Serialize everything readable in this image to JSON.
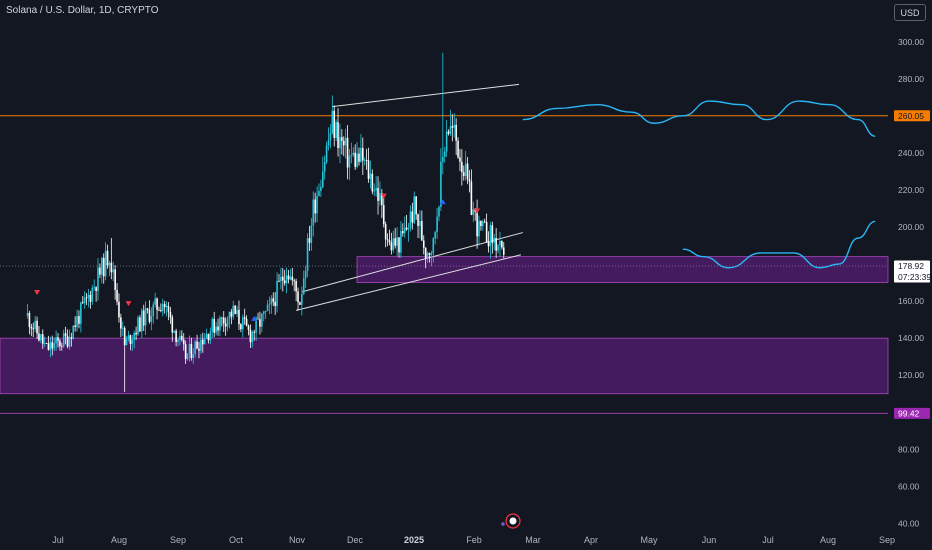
{
  "header": {
    "symbol_title": "Solana / U.S. Dollar, 1D, CRYPTO",
    "currency_button": "USD"
  },
  "colors": {
    "background": "#131722",
    "bull": "#26c6da",
    "bear": "#ffffff",
    "resistance": "#f57c00",
    "zone": "#7b1fa2",
    "projection": "#29b6f6",
    "channel": "#e0e0e0"
  },
  "chart_data": {
    "type": "candlestick",
    "title": "Solana / U.S. Dollar, 1D, CRYPTO",
    "y_axis": {
      "ticks": [
        300,
        280,
        240,
        220,
        200,
        160,
        140,
        120,
        80,
        60,
        40
      ],
      "tick_labels": [
        "300.00",
        "280.00",
        "240.00",
        "220.00",
        "200.00",
        "160.00",
        "140.00",
        "120.00",
        "80.00",
        "60.00",
        "40.00"
      ],
      "range": [
        36,
        312
      ]
    },
    "x_axis": {
      "ticks": [
        "Jul",
        "Aug",
        "Sep",
        "Oct",
        "Nov",
        "Dec",
        "2025",
        "Feb",
        "Mar",
        "Apr",
        "May",
        "Jun",
        "Jul",
        "Aug",
        "Sep"
      ],
      "bold_ticks": [
        "2025"
      ]
    },
    "price_labels": {
      "resistance": "260.05",
      "current_price": "178.92",
      "countdown": "07:23:39",
      "support": "99.42"
    },
    "levels": {
      "resistance": 260.05,
      "support": 99.42,
      "current": 178.92
    },
    "zones": [
      {
        "name": "upper demand zone",
        "from": 170,
        "to": 184
      },
      {
        "name": "lower demand zone",
        "from": 110,
        "to": 140
      }
    ],
    "ohlc_anchors": [
      [
        "2024-06-15",
        152
      ],
      [
        "2024-06-25",
        134
      ],
      [
        "2024-07-06",
        140
      ],
      [
        "2024-07-15",
        158
      ],
      [
        "2024-07-28",
        186
      ],
      [
        "2024-08-05",
        136
      ],
      [
        "2024-08-14",
        150
      ],
      [
        "2024-08-25",
        160
      ],
      [
        "2024-09-06",
        130
      ],
      [
        "2024-09-20",
        146
      ],
      [
        "2024-10-01",
        154
      ],
      [
        "2024-10-10",
        142
      ],
      [
        "2024-10-20",
        155
      ],
      [
        "2024-10-29",
        178
      ],
      [
        "2024-11-05",
        160
      ],
      [
        "2024-11-12",
        210
      ],
      [
        "2024-11-22",
        256
      ],
      [
        "2024-11-30",
        238
      ],
      [
        "2024-12-08",
        236
      ],
      [
        "2024-12-16",
        218
      ],
      [
        "2024-12-22",
        190
      ],
      [
        "2024-12-28",
        192
      ],
      [
        "2025-01-04",
        210
      ],
      [
        "2025-01-10",
        188
      ],
      [
        "2025-01-14",
        190
      ],
      [
        "2025-01-18",
        228
      ],
      [
        "2025-01-21",
        255
      ],
      [
        "2025-01-25",
        250
      ],
      [
        "2025-01-30",
        232
      ],
      [
        "2025-02-03",
        212
      ],
      [
        "2025-02-07",
        198
      ],
      [
        "2025-02-12",
        196
      ],
      [
        "2025-02-17",
        190
      ],
      [
        "2025-02-20",
        180
      ]
    ],
    "projection_paths": [
      {
        "name": "upper projection",
        "points": [
          [
            "2025-03-02",
            258
          ],
          [
            "2025-03-20",
            264
          ],
          [
            "2025-04-10",
            266
          ],
          [
            "2025-04-28",
            262
          ],
          [
            "2025-05-10",
            256
          ],
          [
            "2025-05-25",
            260
          ],
          [
            "2025-06-08",
            268
          ],
          [
            "2025-06-25",
            266
          ],
          [
            "2025-07-08",
            258
          ],
          [
            "2025-07-25",
            268
          ],
          [
            "2025-08-10",
            266
          ],
          [
            "2025-08-25",
            258
          ],
          [
            "2025-09-03",
            249
          ]
        ]
      },
      {
        "name": "lower projection",
        "points": [
          [
            "2025-05-25",
            188
          ],
          [
            "2025-06-05",
            184
          ],
          [
            "2025-06-18",
            178
          ],
          [
            "2025-07-05",
            186
          ],
          [
            "2025-07-22",
            186
          ],
          [
            "2025-08-05",
            178
          ],
          [
            "2025-08-15",
            180
          ],
          [
            "2025-08-25",
            194
          ],
          [
            "2025-09-03",
            203
          ]
        ]
      }
    ],
    "trendlines": [
      {
        "name": "channel-top",
        "from": [
          "2024-11-22",
          265
        ],
        "to": [
          "2025-02-28",
          277
        ]
      },
      {
        "name": "wedge-upper",
        "from": [
          "2024-11-06",
          165
        ],
        "to": [
          "2025-03-02",
          197
        ]
      },
      {
        "name": "wedge-lower",
        "from": [
          "2024-11-03",
          155
        ],
        "to": [
          "2025-03-01",
          185
        ]
      }
    ]
  }
}
